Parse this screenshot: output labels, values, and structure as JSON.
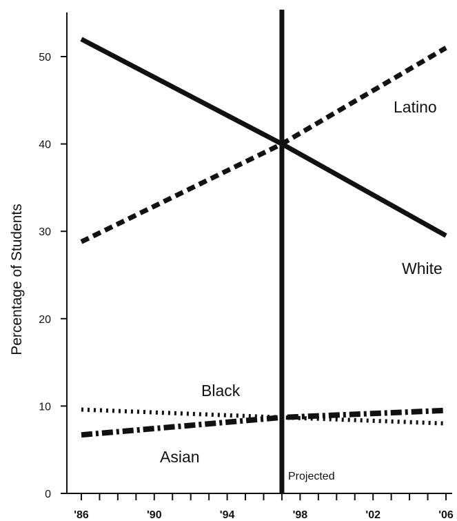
{
  "chart_data": {
    "type": "line",
    "title": "",
    "xlabel": "",
    "ylabel": "Percentage of Students",
    "xlim": [
      1986,
      2006
    ],
    "ylim": [
      0,
      55
    ],
    "x_tick_labels": [
      {
        "year": 1986,
        "label": "'86"
      },
      {
        "year": 1990,
        "label": "'90"
      },
      {
        "year": 1994,
        "label": "'94"
      },
      {
        "year": 1998,
        "label": "'98"
      },
      {
        "year": 2002,
        "label": "'02"
      },
      {
        "year": 2006,
        "label": "'06"
      }
    ],
    "y_ticks": [
      0,
      10,
      20,
      30,
      40,
      50
    ],
    "projected_year": 1997,
    "projected_label": "Projected",
    "series": [
      {
        "name": "White",
        "style": "solid",
        "x": [
          1986,
          1997,
          2006
        ],
        "values": [
          52,
          40,
          29.5
        ]
      },
      {
        "name": "Latino",
        "style": "dashed",
        "x": [
          1986,
          1997,
          2006
        ],
        "values": [
          28.8,
          40,
          51
        ]
      },
      {
        "name": "Black",
        "style": "dotted",
        "x": [
          1986,
          1997,
          2006
        ],
        "values": [
          9.6,
          8.7,
          8.0
        ]
      },
      {
        "name": "Asian",
        "style": "dash-dot",
        "x": [
          1986,
          1997,
          2006
        ],
        "values": [
          6.7,
          8.7,
          9.5
        ]
      }
    ]
  },
  "colors": {
    "ink": "#111111"
  }
}
